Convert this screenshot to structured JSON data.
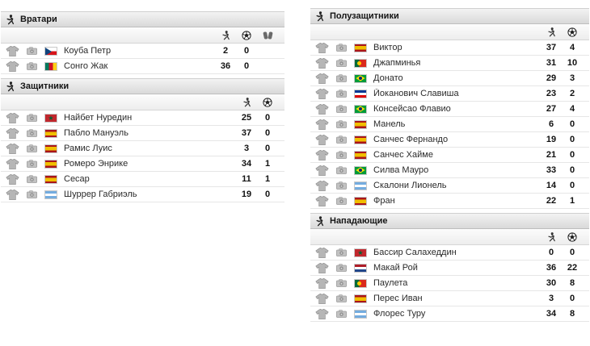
{
  "sections": [
    {
      "id": "goalkeepers",
      "column": "left",
      "title": "Вратари",
      "stat_icons": [
        "runner-icon",
        "ball-icon",
        "gloves-icon"
      ],
      "players": [
        {
          "name": "Коуба Петр",
          "flag": "cz",
          "values": [
            "2",
            "0",
            ""
          ]
        },
        {
          "name": "Сонго Жак",
          "flag": "cm",
          "values": [
            "36",
            "0",
            ""
          ]
        }
      ]
    },
    {
      "id": "defenders",
      "column": "left",
      "title": "Защитники",
      "stat_icons": [
        "runner-icon",
        "ball-icon"
      ],
      "players": [
        {
          "name": "Найбет Нуредин",
          "flag": "ma",
          "values": [
            "25",
            "0"
          ]
        },
        {
          "name": "Пабло Мануэль",
          "flag": "es",
          "values": [
            "37",
            "0"
          ]
        },
        {
          "name": "Рамис Луис",
          "flag": "es",
          "values": [
            "3",
            "0"
          ]
        },
        {
          "name": "Ромеро Энрике",
          "flag": "es",
          "values": [
            "34",
            "1"
          ]
        },
        {
          "name": "Сесар",
          "flag": "es",
          "values": [
            "11",
            "1"
          ]
        },
        {
          "name": "Шуррер Габриэль",
          "flag": "ar",
          "values": [
            "19",
            "0"
          ]
        }
      ]
    },
    {
      "id": "midfielders",
      "column": "right",
      "title": "Полузащитники",
      "stat_icons": [
        "runner-icon",
        "ball-icon"
      ],
      "players": [
        {
          "name": "Виктор",
          "flag": "es",
          "values": [
            "37",
            "4"
          ]
        },
        {
          "name": "Джапминья",
          "flag": "pt",
          "values": [
            "31",
            "10"
          ]
        },
        {
          "name": "Донато",
          "flag": "br",
          "values": [
            "29",
            "3"
          ]
        },
        {
          "name": "Йоканович Славиша",
          "flag": "yu",
          "values": [
            "23",
            "2"
          ]
        },
        {
          "name": "Консейсао Флавио",
          "flag": "br",
          "values": [
            "27",
            "4"
          ]
        },
        {
          "name": "Манель",
          "flag": "es",
          "values": [
            "6",
            "0"
          ]
        },
        {
          "name": "Санчес Фернандо",
          "flag": "es",
          "values": [
            "19",
            "0"
          ]
        },
        {
          "name": "Санчес Хайме",
          "flag": "es",
          "values": [
            "21",
            "0"
          ]
        },
        {
          "name": "Силва Мауро",
          "flag": "br",
          "values": [
            "33",
            "0"
          ]
        },
        {
          "name": "Скалони Лионель",
          "flag": "ar",
          "values": [
            "14",
            "0"
          ]
        },
        {
          "name": "Фран",
          "flag": "es",
          "values": [
            "22",
            "1"
          ]
        }
      ]
    },
    {
      "id": "forwards",
      "column": "right",
      "title": "Нападающие",
      "stat_icons": [
        "runner-icon",
        "ball-icon"
      ],
      "players": [
        {
          "name": "Бассир Салахеддин",
          "flag": "ma",
          "values": [
            "0",
            "0"
          ]
        },
        {
          "name": "Макай Рой",
          "flag": "nl",
          "values": [
            "36",
            "22"
          ]
        },
        {
          "name": "Паулета",
          "flag": "pt",
          "values": [
            "30",
            "8"
          ]
        },
        {
          "name": "Перес Иван",
          "flag": "es",
          "values": [
            "3",
            "0"
          ]
        },
        {
          "name": "Флорес Туру",
          "flag": "ar",
          "values": [
            "34",
            "8"
          ]
        }
      ]
    }
  ]
}
